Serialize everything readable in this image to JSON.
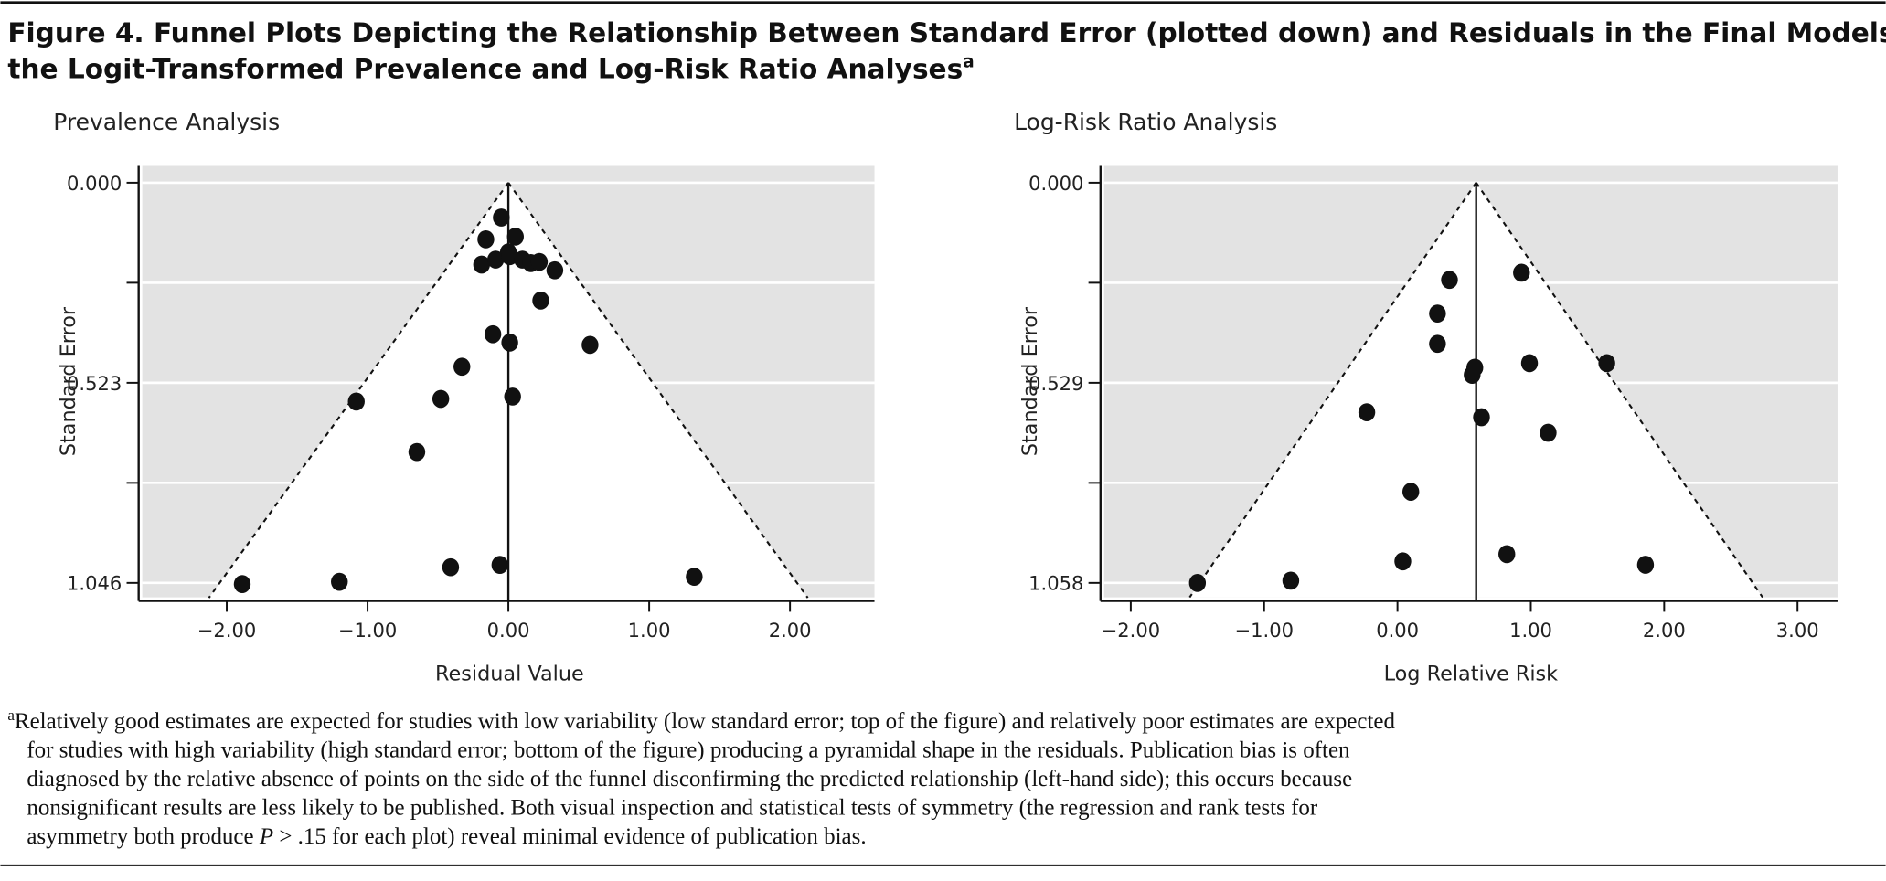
{
  "figure": {
    "title_line1": "Figure 4. Funnel Plots Depicting the Relationship Between Standard Error (plotted down) and Residuals in the Final Models for",
    "title_line2": "the Logit-Transformed Prevalence and Log-Risk Ratio Analyses",
    "title_sup": "a",
    "footnote": {
      "marker": "a",
      "line1": "Relatively good estimates are expected for studies with low variability (low standard error; top of the figure) and relatively poor estimates are expected",
      "line2": "for studies with high variability (high standard error; bottom of the figure) producing a pyramidal shape in the residuals. Publication bias is often",
      "line3": "diagnosed by the relative absence of points on the side of the funnel disconfirming the predicted relationship (left-hand side); this occurs because",
      "line4": "nonsignificant results are less likely to be published. Both visual inspection and statistical tests of symmetry (the regression and rank tests for",
      "line5a": "asymmetry both produce ",
      "line5b": "P",
      "line5c": " > .15 for each plot) reveal minimal evidence of publication bias."
    }
  },
  "chart_data": [
    {
      "type": "scatter",
      "title": "Prevalence Analysis",
      "xlabel": "Residual Value",
      "ylabel": "Standard Error",
      "xlim": [
        -2.6,
        2.6
      ],
      "ylim": [
        0,
        1.085
      ],
      "y_inverted": true,
      "grid": true,
      "xticks": [
        -2,
        -1,
        0,
        1,
        2
      ],
      "xtick_labels": [
        "−2.00",
        "−1.00",
        "0.00",
        "1.00",
        "2.00"
      ],
      "yticks": [
        0,
        0.2615,
        0.523,
        0.7845,
        1.046
      ],
      "ytick_labels": [
        "0.000",
        "",
        "0.523",
        "",
        "1.046"
      ],
      "center": 0,
      "funnel_z": 1.96,
      "points": [
        [
          -0.05,
          0.091
        ],
        [
          -0.16,
          0.148
        ],
        [
          0.05,
          0.141
        ],
        [
          0.0,
          0.182
        ],
        [
          -0.19,
          0.214
        ],
        [
          -0.09,
          0.201
        ],
        [
          0.01,
          0.192
        ],
        [
          0.1,
          0.201
        ],
        [
          0.16,
          0.21
        ],
        [
          0.22,
          0.207
        ],
        [
          0.33,
          0.229
        ],
        [
          0.23,
          0.308
        ],
        [
          -0.11,
          0.396
        ],
        [
          0.01,
          0.418
        ],
        [
          0.58,
          0.424
        ],
        [
          -0.33,
          0.481
        ],
        [
          -1.08,
          0.572
        ],
        [
          -0.48,
          0.565
        ],
        [
          0.03,
          0.559
        ],
        [
          -0.65,
          0.704
        ],
        [
          -0.41,
          1.005
        ],
        [
          -0.06,
          0.999
        ],
        [
          1.32,
          1.03
        ],
        [
          -1.89,
          1.049
        ],
        [
          -1.2,
          1.043
        ]
      ]
    },
    {
      "type": "scatter",
      "title": "Log-Risk Ratio Analysis",
      "xlabel": "Log Relative Risk",
      "ylabel": "Standard Error",
      "xlim": [
        -2.2,
        3.3
      ],
      "ylim": [
        0,
        1.096
      ],
      "y_inverted": true,
      "grid": true,
      "xticks": [
        -2,
        -1,
        0,
        1,
        2,
        3
      ],
      "xtick_labels": [
        "−2.00",
        "−1.00",
        "0.00",
        "1.00",
        "2.00",
        "3.00"
      ],
      "yticks": [
        0,
        0.2645,
        0.529,
        0.7935,
        1.058
      ],
      "ytick_labels": [
        "0.000",
        "",
        "0.529",
        "",
        "1.058"
      ],
      "center": 0.59,
      "funnel_z": 1.96,
      "points": [
        [
          0.93,
          0.238
        ],
        [
          0.39,
          0.257
        ],
        [
          0.3,
          0.346
        ],
        [
          0.3,
          0.426
        ],
        [
          0.58,
          0.489
        ],
        [
          0.56,
          0.508
        ],
        [
          0.99,
          0.477
        ],
        [
          1.57,
          0.477
        ],
        [
          -0.23,
          0.607
        ],
        [
          0.63,
          0.62
        ],
        [
          1.13,
          0.661
        ],
        [
          0.1,
          0.817
        ],
        [
          0.04,
          1.001
        ],
        [
          0.82,
          0.982
        ],
        [
          1.86,
          1.01
        ],
        [
          -0.8,
          1.052
        ],
        [
          -1.5,
          1.058
        ]
      ]
    }
  ]
}
